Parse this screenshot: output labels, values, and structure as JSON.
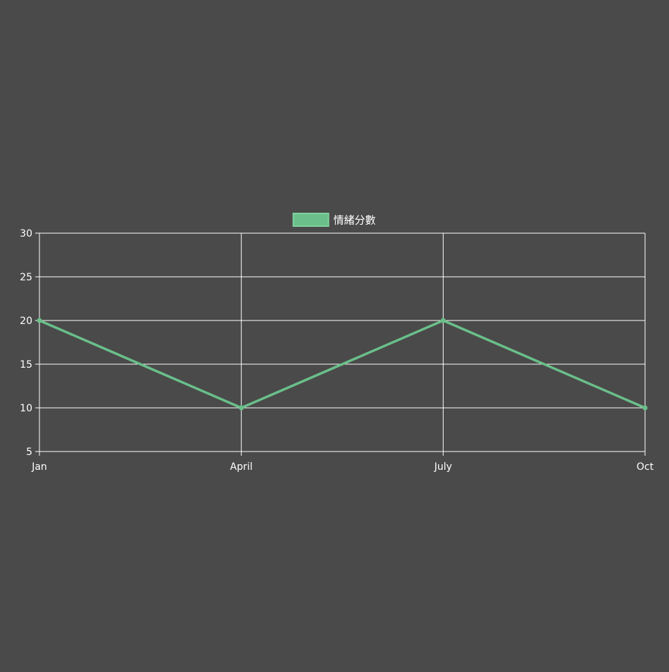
{
  "colors": {
    "background": "#4a4a4a",
    "series": "#6abf8a",
    "grid": "#ffffff",
    "text": "#ffffff"
  },
  "chart_data": {
    "type": "line",
    "categories": [
      "Jan",
      "April",
      "July",
      "Oct"
    ],
    "series": [
      {
        "name": "情緒分數",
        "values": [
          20,
          10,
          20,
          10
        ]
      }
    ],
    "title": "",
    "xlabel": "",
    "ylabel": "",
    "ylim": [
      5,
      30
    ],
    "yticks": [
      5,
      10,
      15,
      20,
      25,
      30
    ],
    "grid": true,
    "legend": "top-center"
  }
}
